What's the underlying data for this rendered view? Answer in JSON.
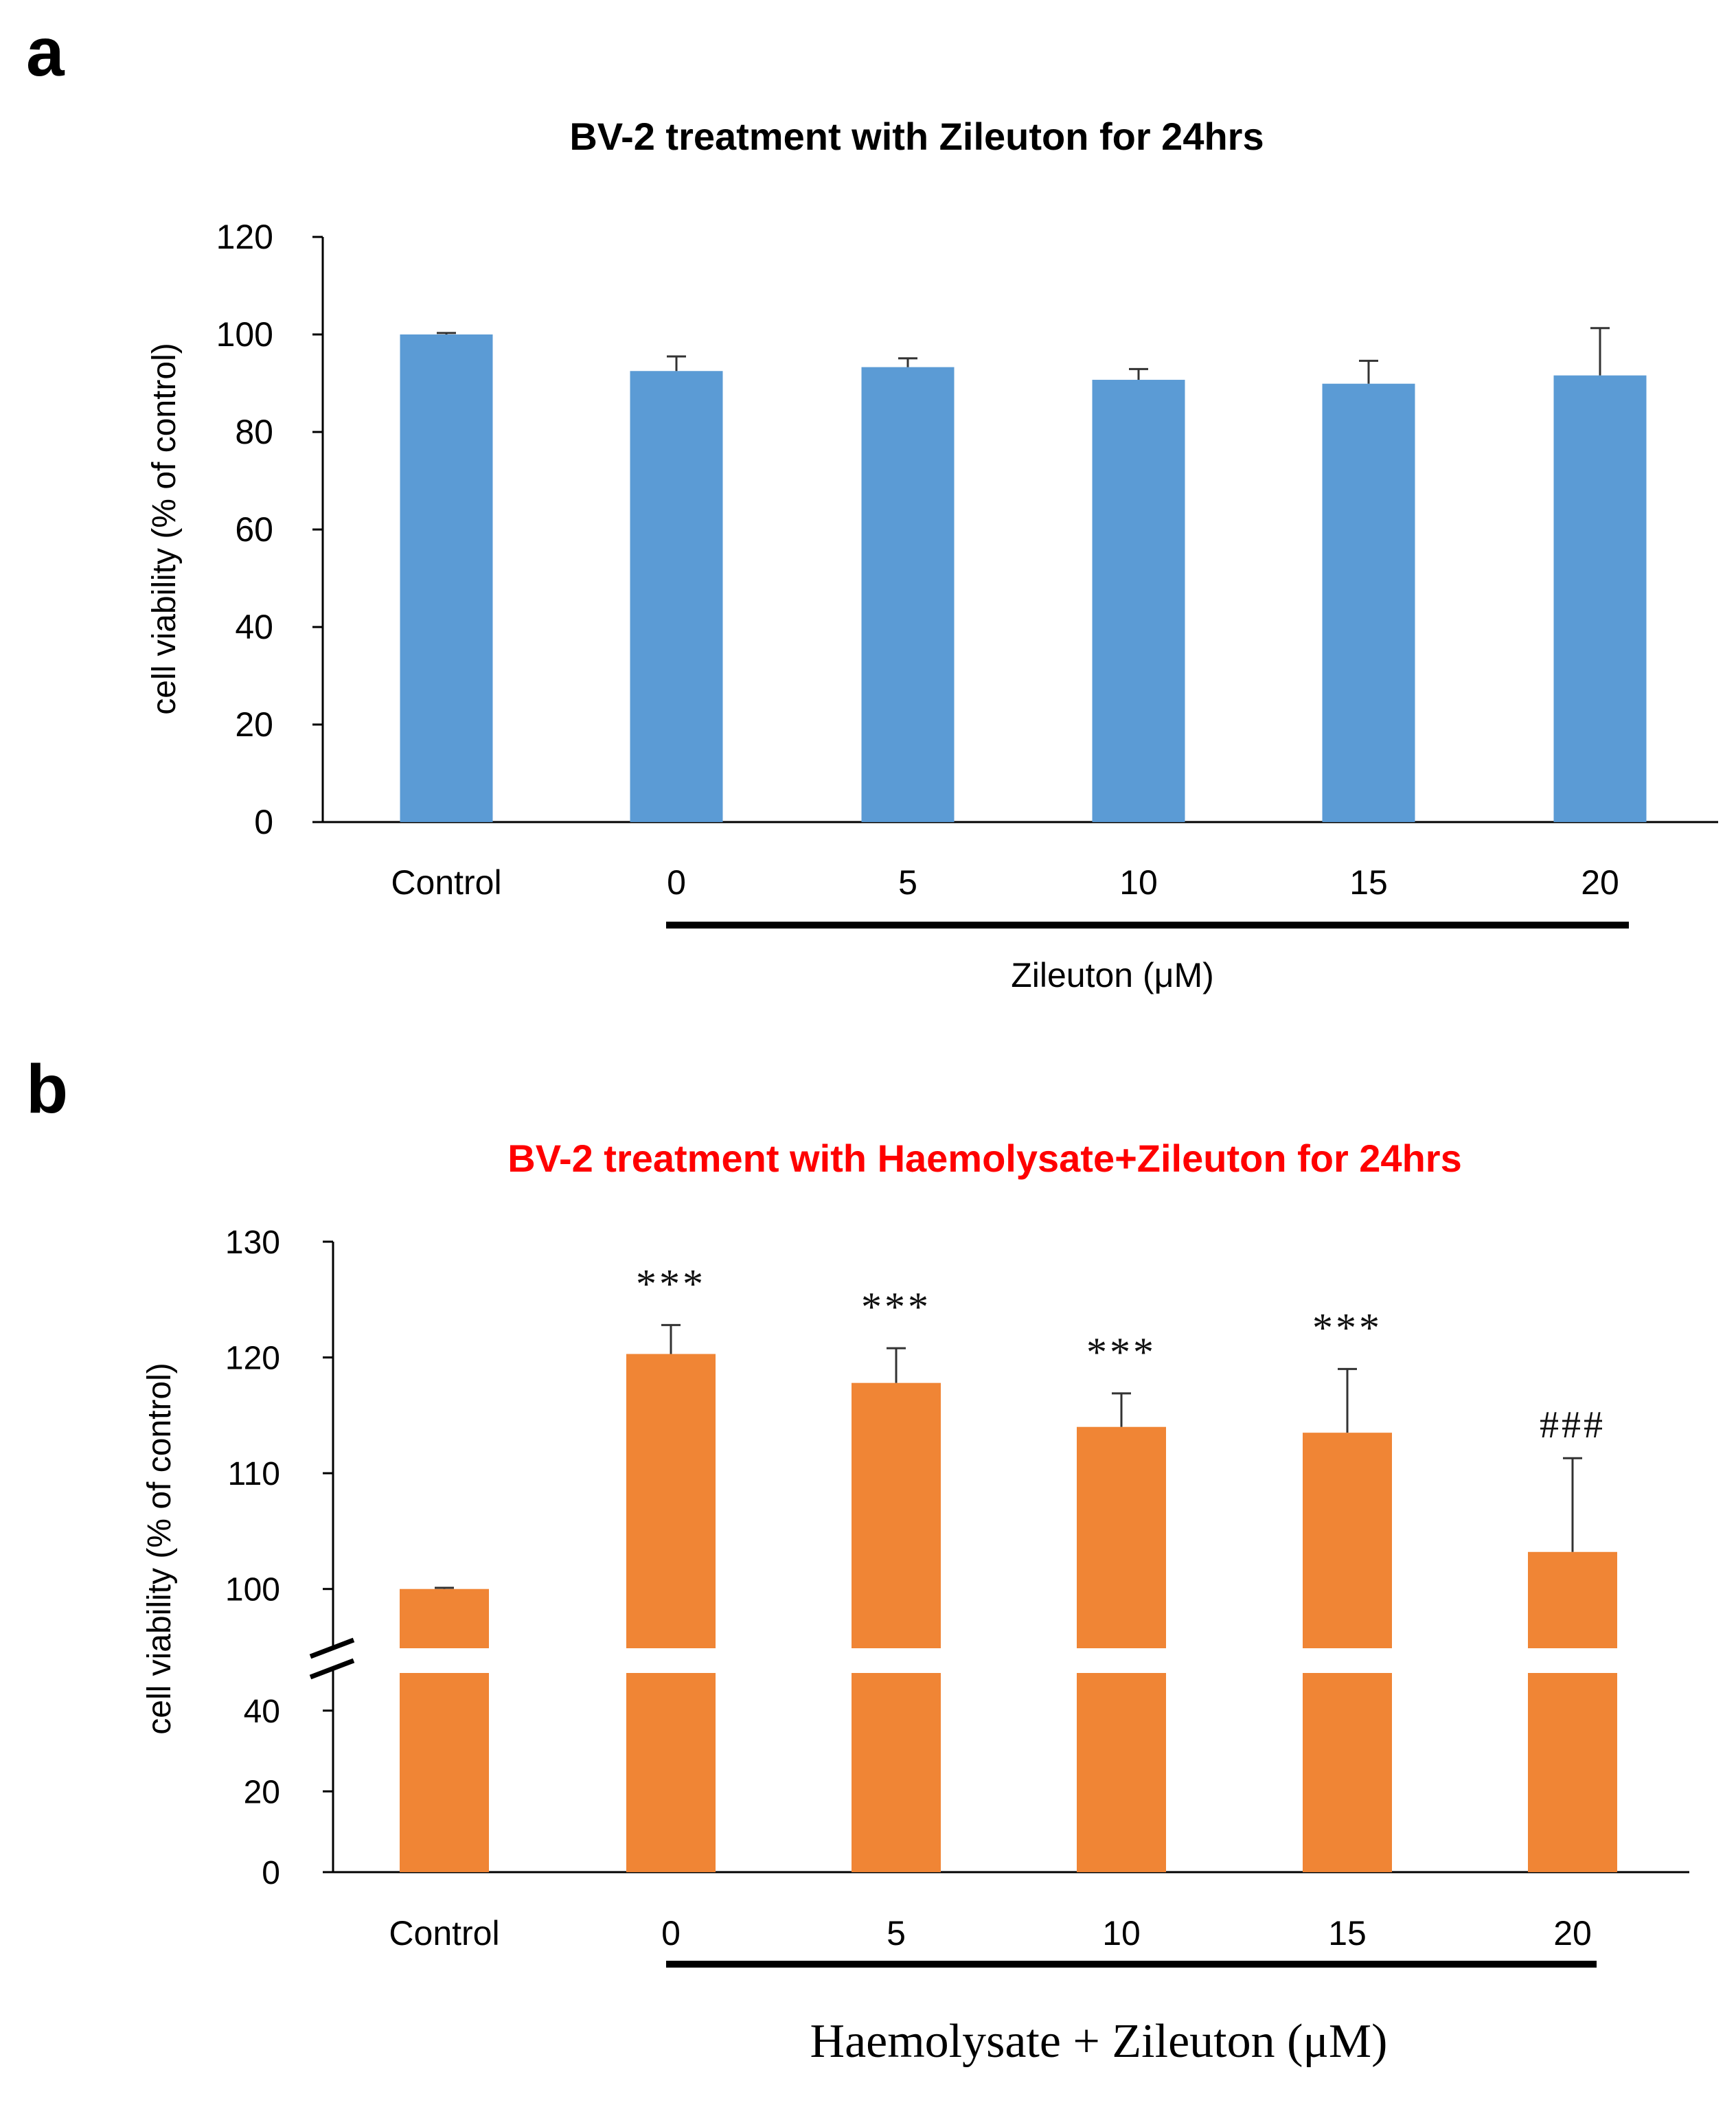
{
  "panels": [
    {
      "panel_label": "a",
      "chart_data": {
        "type": "bar",
        "title": "BV-2 treatment with Zileuton for 24hrs",
        "title_color": "#000000",
        "bar_color": "#5B9BD5",
        "categories": [
          "Control",
          "0",
          "5",
          "10",
          "15",
          "20"
        ],
        "values": [
          100,
          92.5,
          93.3,
          90.7,
          89.9,
          91.6
        ],
        "errors": [
          0.3,
          3.0,
          1.8,
          2.2,
          4.7,
          9.7
        ],
        "significance": [
          "",
          "",
          "",
          "",
          "",
          ""
        ],
        "xlabel": "Zileuton (μM)",
        "ylabel": "cell viability (% of control)",
        "ylim": [
          0,
          120
        ],
        "yticks": [
          0,
          20,
          40,
          60,
          80,
          100,
          120
        ],
        "grid": false
      }
    },
    {
      "panel_label": "b",
      "chart_data": {
        "type": "bar",
        "title": "BV-2 treatment with Haemolysate+Zileuton for 24hrs",
        "title_color": "#FF0000",
        "bar_color": "#F08535",
        "categories": [
          "Control",
          "0",
          "5",
          "10",
          "15",
          "20"
        ],
        "values": [
          100,
          120.3,
          117.8,
          114.0,
          113.5,
          103.2
        ],
        "errors": [
          0.1,
          2.5,
          3.0,
          2.9,
          5.5,
          8.1
        ],
        "significance": [
          "",
          "***",
          "***",
          "***",
          "***",
          "###"
        ],
        "xlabel": "Haemolysate + Zileuton (μM)",
        "ylabel": "cell viability (% of control)",
        "axis_break": true,
        "ylim_lower": [
          0,
          50
        ],
        "ylim_upper": [
          95,
          130
        ],
        "yticks_lower": [
          0,
          20,
          40
        ],
        "yticks_upper": [
          100,
          110,
          120,
          130
        ],
        "grid": false
      }
    }
  ]
}
